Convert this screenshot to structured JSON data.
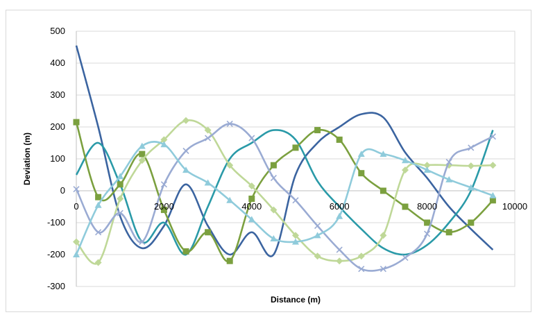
{
  "chart_data": {
    "type": "line",
    "title": "",
    "xlabel": "Distance (m)",
    "ylabel": "Deviation (m)",
    "xlim": [
      0,
      10000
    ],
    "ylim": [
      -300,
      500
    ],
    "xticks": [
      0,
      2000,
      4000,
      6000,
      8000,
      10000
    ],
    "yticks": [
      -300,
      -200,
      -100,
      0,
      100,
      200,
      300,
      400,
      500
    ],
    "grid": "horizontal",
    "legend": "none",
    "series": [
      {
        "color": "#3B64A0",
        "marker": "none",
        "x": [
          0,
          500,
          1000,
          1500,
          2000,
          2500,
          3000,
          3500,
          4000,
          4500,
          5000,
          5500,
          6000,
          6500,
          7000,
          7500,
          8000,
          8500,
          9000,
          9500
        ],
        "y": [
          455,
          200,
          -80,
          -180,
          -110,
          20,
          -110,
          -200,
          -130,
          -200,
          50,
          150,
          200,
          240,
          230,
          120,
          40,
          -50,
          -120,
          -185
        ]
      },
      {
        "color": "#2A9AA8",
        "marker": "none",
        "x": [
          0,
          500,
          1000,
          1500,
          2000,
          2500,
          3000,
          3500,
          4000,
          4500,
          5000,
          5500,
          6000,
          6500,
          7000,
          7500,
          8000,
          8500,
          9000,
          9500
        ],
        "y": [
          50,
          150,
          20,
          -160,
          -100,
          -200,
          -50,
          100,
          150,
          190,
          160,
          30,
          -50,
          -120,
          -180,
          -200,
          -170,
          -100,
          0,
          190
        ]
      },
      {
        "color": "#7BA03F",
        "marker": "square",
        "x": [
          0,
          500,
          1000,
          1500,
          2000,
          2500,
          3000,
          3500,
          4000,
          4500,
          5000,
          5500,
          6000,
          6500,
          7000,
          7500,
          8000,
          8500,
          9000,
          9500
        ],
        "y": [
          215,
          -20,
          20,
          115,
          -60,
          -190,
          -130,
          -220,
          -25,
          80,
          135,
          190,
          160,
          55,
          0,
          -50,
          -100,
          -130,
          -100,
          -30
        ]
      },
      {
        "color": "#BFD898",
        "marker": "diamond",
        "x": [
          0,
          500,
          1000,
          1500,
          2000,
          2500,
          3000,
          3500,
          4000,
          4500,
          5000,
          5500,
          6000,
          6500,
          7000,
          7500,
          8000,
          8500,
          9000,
          9500
        ],
        "y": [
          -160,
          -225,
          -25,
          95,
          160,
          220,
          190,
          80,
          15,
          -60,
          -140,
          -205,
          -220,
          -205,
          -140,
          65,
          80,
          80,
          78,
          80
        ]
      },
      {
        "color": "#9AABD3",
        "marker": "x",
        "x": [
          0,
          500,
          1000,
          1500,
          2000,
          2500,
          3000,
          3500,
          4000,
          4500,
          5000,
          5500,
          6000,
          6500,
          7000,
          7500,
          8000,
          8500,
          9000,
          9500
        ],
        "y": [
          5,
          -130,
          -70,
          -160,
          20,
          125,
          165,
          210,
          165,
          40,
          -30,
          -110,
          -185,
          -245,
          -245,
          -210,
          -135,
          90,
          135,
          170
        ]
      },
      {
        "color": "#8FCBDB",
        "marker": "triangle",
        "x": [
          0,
          500,
          1000,
          1500,
          2000,
          2500,
          3000,
          3500,
          4000,
          4500,
          5000,
          5500,
          6000,
          6500,
          7000,
          7500,
          8000,
          8500,
          9000,
          9500
        ],
        "y": [
          -200,
          -45,
          45,
          140,
          145,
          65,
          25,
          -30,
          -90,
          -150,
          -160,
          -140,
          -80,
          115,
          115,
          95,
          65,
          35,
          10,
          -15
        ]
      }
    ]
  }
}
